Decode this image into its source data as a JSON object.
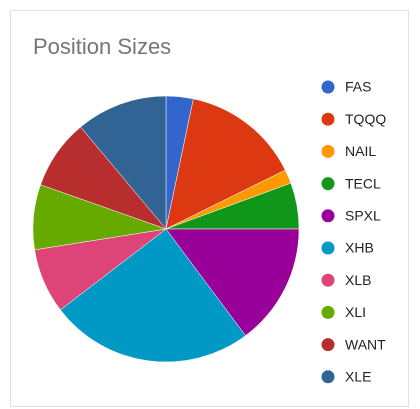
{
  "chart_data": {
    "type": "pie",
    "title": "Position Sizes",
    "categories": [
      "FAS",
      "TQQQ",
      "NAIL",
      "TECL",
      "SPXL",
      "XHB",
      "XLB",
      "XLI",
      "WANT",
      "XLE"
    ],
    "values": [
      3.3,
      14.4,
      1.7,
      5.6,
      14.8,
      24.8,
      7.9,
      7.9,
      8.5,
      11.1
    ],
    "colors": [
      "#3366cc",
      "#dc3912",
      "#ff9900",
      "#109618",
      "#990099",
      "#0099c6",
      "#dd4477",
      "#66aa00",
      "#b82e2e",
      "#316395"
    ],
    "legend": "right"
  }
}
